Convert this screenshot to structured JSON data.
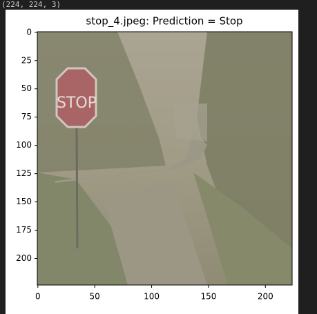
{
  "output_text": "(224, 224, 3)",
  "chart_data": {
    "type": "image",
    "title": "stop_4.jpeg: Prediction = Stop",
    "image_text": "STOP",
    "xlim": [
      -0.5,
      223.5
    ],
    "ylim": [
      223.5,
      -0.5
    ],
    "xticks": [
      0,
      50,
      100,
      150,
      200
    ],
    "yticks": [
      0,
      25,
      50,
      75,
      100,
      125,
      150,
      175,
      200
    ]
  }
}
